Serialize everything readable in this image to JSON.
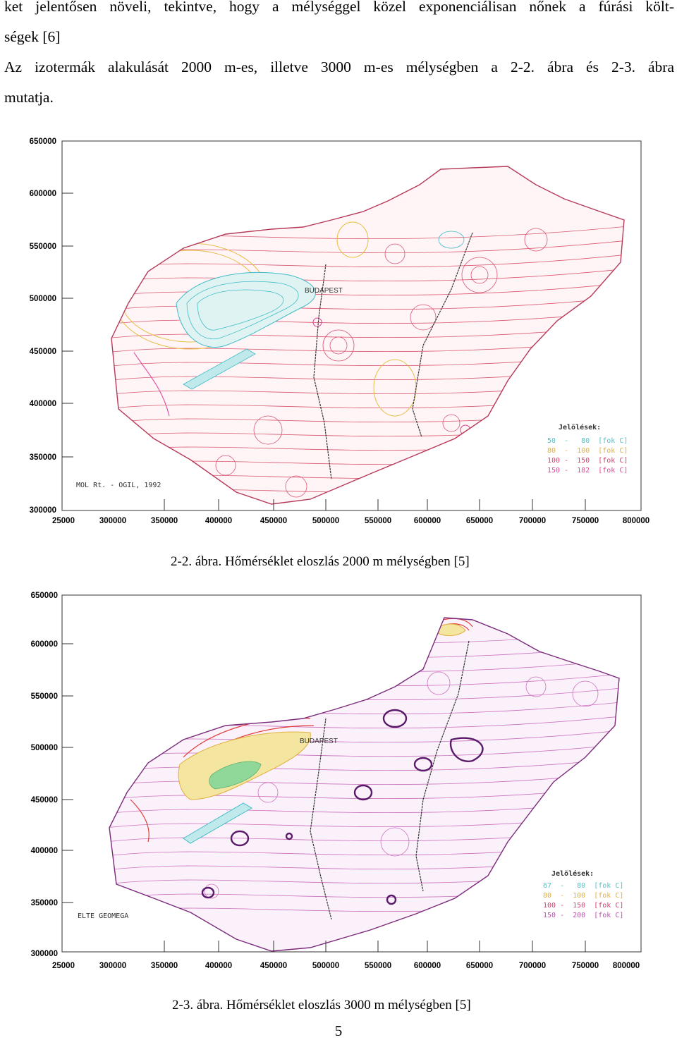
{
  "text": {
    "p1_line1": "ket jelentősen növeli, tekintve, hogy a mélységgel közel exponenciálisan nőnek a fúrási költ-",
    "p1_line2": "ségek [6]",
    "p2_line1": "Az izotermák alakulását 2000 m-es, illetve 3000 m-es mélységben a 2-2. ábra és 2-3. ábra",
    "p2_line2": "mutatja."
  },
  "figure1": {
    "caption": "2-2. ábra. Hőmérséklet eloszlás 2000 m mélységben [5]",
    "y_ticks": [
      "650000",
      "600000",
      "550000",
      "500000",
      "450000",
      "400000",
      "350000",
      "300000"
    ],
    "x_ticks": [
      "25000",
      "300000",
      "350000",
      "400000",
      "450000",
      "500000",
      "550000",
      "600000",
      "650000",
      "700000",
      "750000",
      "800000"
    ],
    "city_label": "BUDAPEST",
    "source_label": "MOL Rt. - OGIL, 1992",
    "legend_title": "Jelölések:",
    "legend": [
      {
        "range": "50  -   80  [fok C]",
        "color": "#4fc3c8"
      },
      {
        "range": "80  -  100  [fok C]",
        "color": "#e0b040"
      },
      {
        "range": "100 -  150  [fok C]",
        "color": "#d04070"
      },
      {
        "range": "150 -  182  [fok C]",
        "color": "#e04898"
      }
    ]
  },
  "figure2": {
    "caption": "2-3. ábra. Hőmérséklet eloszlás 3000 m mélységben [5]",
    "y_ticks": [
      "650000",
      "600000",
      "550000",
      "500000",
      "450000",
      "400000",
      "350000",
      "300000"
    ],
    "x_ticks": [
      "25000",
      "300000",
      "350000",
      "400000",
      "450000",
      "500000",
      "550000",
      "600000",
      "650000",
      "700000",
      "750000",
      "800000"
    ],
    "city_label": "BUDAPEST",
    "source_label": "ELTE GEOMEGA",
    "legend_title": "Jelölések:",
    "legend": [
      {
        "range": "67  -   80  [fok C]",
        "color": "#4fc3c8"
      },
      {
        "range": "80  -  100  [fok C]",
        "color": "#e0b040"
      },
      {
        "range": "100 -  150  [fok C]",
        "color": "#d04070"
      },
      {
        "range": "150 -  200  [fok C]",
        "color": "#c050b0"
      }
    ]
  },
  "page_number": "5",
  "colors": {
    "contour_main": "#d23c5a",
    "contour_cool": "#41bcc6",
    "contour_warm": "#e8c040",
    "contour_hot": "#a040b0",
    "frame": "#555555"
  }
}
